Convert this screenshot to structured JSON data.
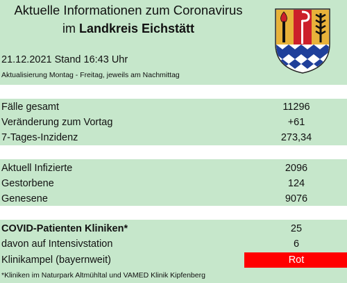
{
  "header": {
    "title_line1": "Aktuelle Informationen zum Coronavirus",
    "title_line2_prefix": "im ",
    "title_line2_bold": "Landkreis Eichstätt"
  },
  "status": {
    "date_line": "21.12.2021 Stand 16:43 Uhr",
    "update_schedule": "Aktualisierung Montag - Freitag, jeweils am Nachmittag"
  },
  "crest": {
    "icon": "landkreis-eichstaett-coat-of-arms",
    "colors": {
      "red": "#cc1f2a",
      "gold": "#e8b23a",
      "blue": "#1f3f9a",
      "white": "#ffffff",
      "black": "#111111"
    }
  },
  "cases": [
    {
      "label": "Fälle gesamt",
      "value": "11296"
    },
    {
      "label": "Veränderung zum Vortag",
      "value": "+61"
    },
    {
      "label": "7-Tages-Inzidenz",
      "value": "273,34"
    }
  ],
  "status_counts": [
    {
      "label": "Aktuell Infizierte",
      "value": "2096"
    },
    {
      "label": "Gestorbene",
      "value": "124"
    },
    {
      "label": "Genesene",
      "value": "9076"
    }
  ],
  "clinics": [
    {
      "label": "COVID-Patienten Kliniken*",
      "value": "25"
    },
    {
      "label": "davon auf Intensivstation",
      "value": "6"
    },
    {
      "label": "Klinikampel (bayernweit)",
      "value": "Rot"
    }
  ],
  "traffic_light_color": "#ff0000",
  "footnote": "*Kliniken im Naturpark Altmühltal und VAMED Klinik Kipfenberg"
}
